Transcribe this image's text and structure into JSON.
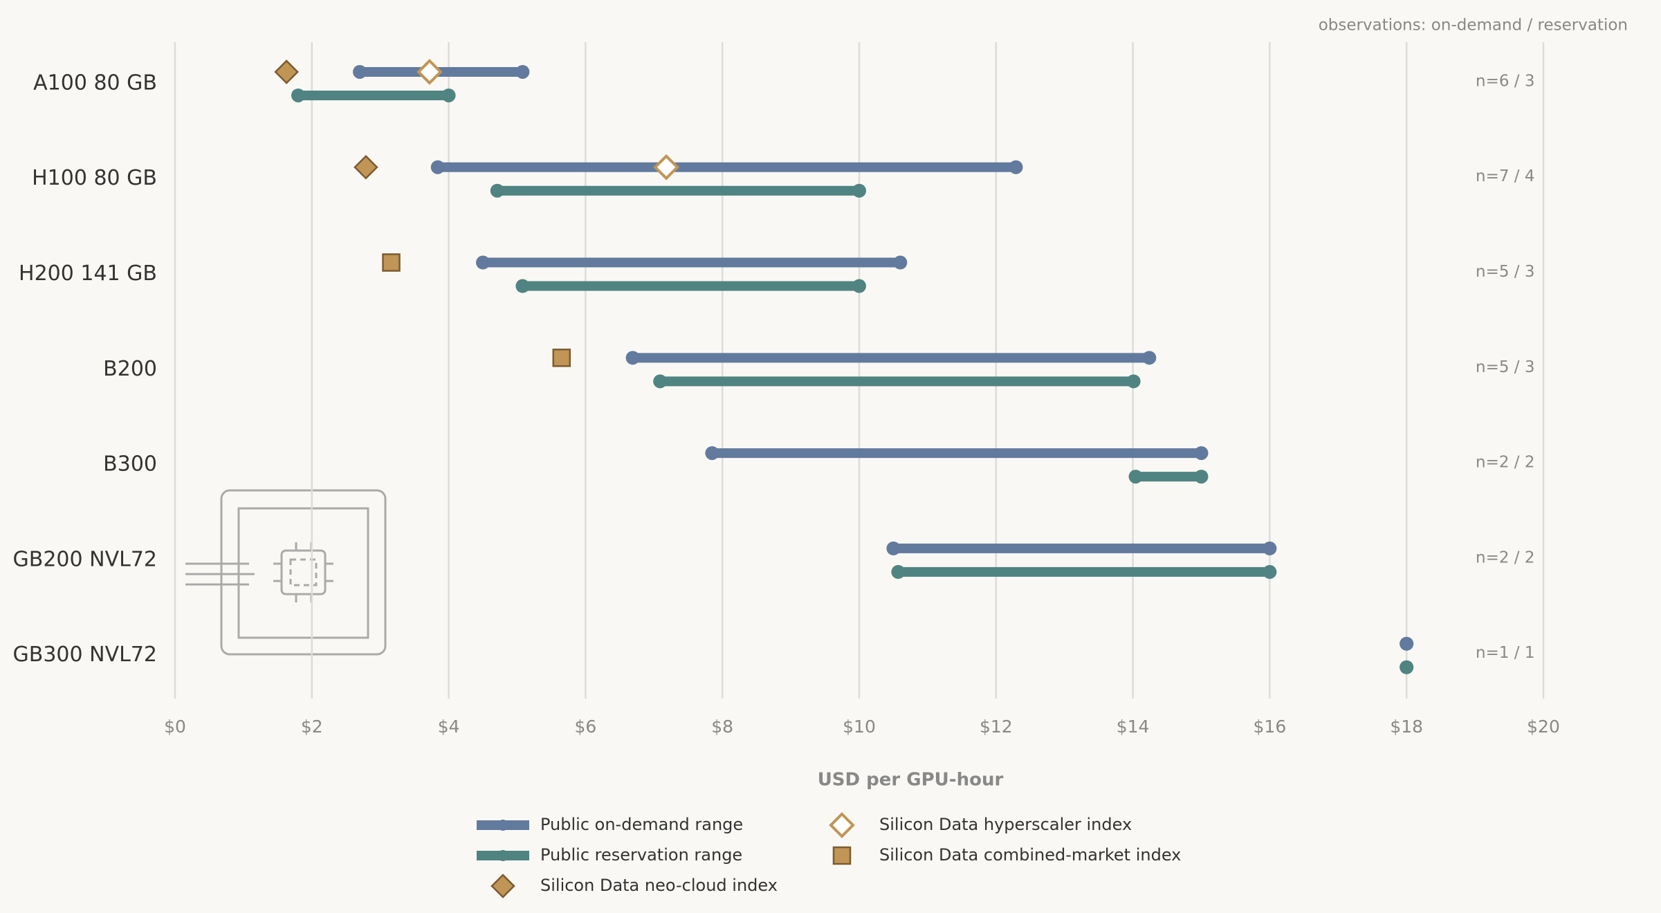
{
  "chart_data": {
    "type": "range",
    "note": "observations: on-demand / reservation",
    "x_label": "USD per GPU-hour",
    "categories": [
      "A100 80 GB",
      "H100 80 GB",
      "H200 141 GB",
      "B200",
      "B300",
      "GB200 NVL72",
      "GB300 NVL72"
    ],
    "count_labels": [
      "n=6 / 3",
      "n=7 / 4",
      "n=5 / 3",
      "n=5 / 3",
      "n=2 / 2",
      "n=2 / 2",
      "n=1 / 1"
    ],
    "range_series": [
      {
        "name": "Public on-demand range",
        "color": "#627a9e",
        "low": [
          2.7,
          3.84,
          4.5,
          6.69,
          7.85,
          10.5,
          18
        ],
        "high": [
          5.08,
          12.29,
          10.6,
          14.24,
          15.0,
          16.0,
          18
        ]
      },
      {
        "name": "Public reservation range",
        "color": "#4f8482",
        "low": [
          1.8,
          4.71,
          5.08,
          7.09,
          14.04,
          10.57,
          18
        ],
        "high": [
          4.0,
          10.0,
          10.0,
          14.01,
          15.0,
          16.0,
          18
        ]
      }
    ],
    "marker_series": [
      {
        "name": "Silicon Data neo-cloud index",
        "marker": "diamond",
        "color": "#c09556",
        "filled": true,
        "values": [
          1.63,
          2.79,
          null,
          null,
          null,
          null,
          null
        ]
      },
      {
        "name": "Silicon Data hyperscaler index",
        "marker": "diamond",
        "color": "#c09556",
        "filled": false,
        "values": [
          3.72,
          7.18,
          null,
          null,
          null,
          null,
          null
        ]
      },
      {
        "name": "Silicon Data combined-market index",
        "marker": "square",
        "color": "#c09556",
        "filled": true,
        "values": [
          null,
          null,
          3.16,
          5.65,
          null,
          null,
          null
        ]
      }
    ],
    "xlim": [
      0,
      20
    ],
    "xticks": [
      {
        "value": 0,
        "label": "$0"
      },
      {
        "value": 2,
        "label": "$2"
      },
      {
        "value": 4,
        "label": "$4"
      },
      {
        "value": 6,
        "label": "$6"
      },
      {
        "value": 8,
        "label": "$8"
      },
      {
        "value": 10,
        "label": "$10"
      },
      {
        "value": 12,
        "label": "$12"
      },
      {
        "value": 14,
        "label": "$14"
      },
      {
        "value": 16,
        "label": "$16"
      },
      {
        "value": 18,
        "label": "$18"
      },
      {
        "value": 20,
        "label": "$20"
      }
    ],
    "grid": true
  }
}
